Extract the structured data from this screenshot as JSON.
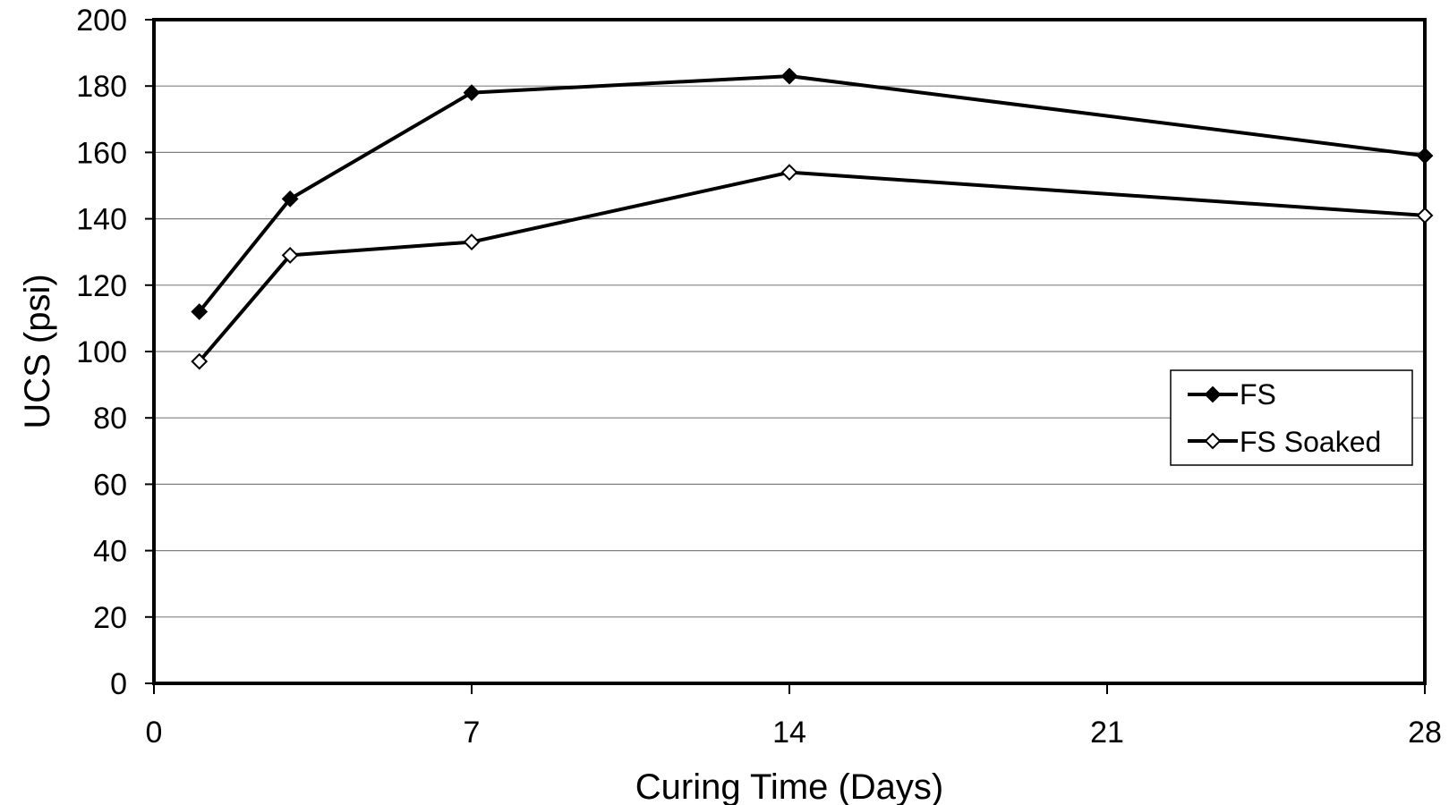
{
  "chart_data": {
    "type": "line",
    "xlabel": "Curing Time (Days)",
    "ylabel": "UCS (psi)",
    "xlim": [
      0,
      28
    ],
    "ylim": [
      0,
      200
    ],
    "x_ticks": [
      0,
      7,
      14,
      21,
      28
    ],
    "y_ticks": [
      0,
      20,
      40,
      60,
      80,
      100,
      120,
      140,
      160,
      180,
      200
    ],
    "grid": "horizontal",
    "legend_position": "right",
    "series": [
      {
        "name": "FS",
        "marker": "filled-diamond",
        "color": "#000000",
        "points": [
          {
            "x": 1,
            "y": 112
          },
          {
            "x": 3,
            "y": 146
          },
          {
            "x": 7,
            "y": 178
          },
          {
            "x": 14,
            "y": 183
          },
          {
            "x": 28,
            "y": 159
          }
        ]
      },
      {
        "name": "FS Soaked",
        "marker": "open-diamond",
        "color": "#000000",
        "points": [
          {
            "x": 1,
            "y": 97
          },
          {
            "x": 3,
            "y": 129
          },
          {
            "x": 7,
            "y": 133
          },
          {
            "x": 14,
            "y": 154
          },
          {
            "x": 28,
            "y": 141
          }
        ]
      }
    ]
  }
}
